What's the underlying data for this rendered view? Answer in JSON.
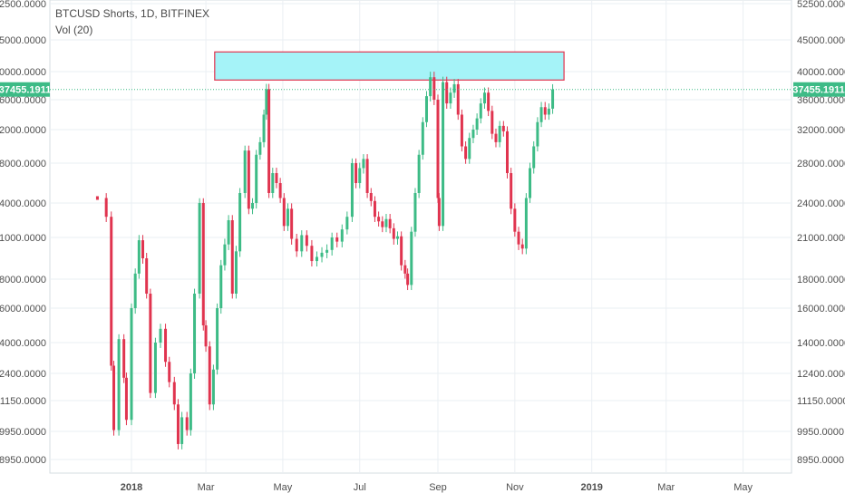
{
  "header": {
    "title": "BTCUSD Shorts, 1D, BITFINEX",
    "indicator": "Vol (20)"
  },
  "colors": {
    "up": "#3dbb86",
    "down": "#e0344f",
    "grid": "#eaeff3",
    "axis_text": "#4f4f4f",
    "price_line": "#3dbb86",
    "zone_fill": "#a5f3f8",
    "zone_stroke": "#e0344f"
  },
  "chart_data": {
    "type": "candlestick",
    "title": "BTCUSD Shorts, 1D, BITFINEX",
    "ylim": [
      8000,
      52500
    ],
    "y_ticks": [
      "52500.0000",
      "45000.0000",
      "40000.0000",
      "36000.0000",
      "32000.0000",
      "28000.0000",
      "24000.0000",
      "21000.0000",
      "18000.0000",
      "16000.0000",
      "14000.0000",
      "12400.0000",
      "11150.0000",
      "9950.0000",
      "8950.0000"
    ],
    "x_ticks": [
      "2018",
      "Mar",
      "May",
      "Jul",
      "Sep",
      "Nov",
      "2019",
      "Mar",
      "May"
    ],
    "current_price_label": "37455.1911",
    "current_price": 37455.1911,
    "resistance_zone": {
      "low": 38800,
      "high": 43100,
      "from": "2018-03-08",
      "to": "2018-12-10"
    },
    "series_closes": [
      {
        "date": "2017-12-05",
        "close": 24500
      },
      {
        "date": "2017-12-12",
        "close": 22800
      },
      {
        "date": "2017-12-16",
        "close": 12800
      },
      {
        "date": "2017-12-18",
        "close": 10000
      },
      {
        "date": "2017-12-22",
        "close": 14200
      },
      {
        "date": "2017-12-26",
        "close": 12200
      },
      {
        "date": "2017-12-28",
        "close": 10400
      },
      {
        "date": "2018-01-01",
        "close": 16000
      },
      {
        "date": "2018-01-04",
        "close": 18400
      },
      {
        "date": "2018-01-07",
        "close": 20800
      },
      {
        "date": "2018-01-10",
        "close": 19500
      },
      {
        "date": "2018-01-13",
        "close": 17000
      },
      {
        "date": "2018-01-16",
        "close": 11500
      },
      {
        "date": "2018-01-20",
        "close": 14000
      },
      {
        "date": "2018-01-24",
        "close": 14800
      },
      {
        "date": "2018-01-28",
        "close": 13000
      },
      {
        "date": "2018-01-31",
        "close": 12000
      },
      {
        "date": "2018-02-04",
        "close": 11000
      },
      {
        "date": "2018-02-07",
        "close": 9500
      },
      {
        "date": "2018-02-10",
        "close": 10500
      },
      {
        "date": "2018-02-14",
        "close": 10000
      },
      {
        "date": "2018-02-17",
        "close": 12400
      },
      {
        "date": "2018-02-20",
        "close": 17000
      },
      {
        "date": "2018-02-24",
        "close": 24000
      },
      {
        "date": "2018-02-27",
        "close": 15000
      },
      {
        "date": "2018-03-01",
        "close": 13800
      },
      {
        "date": "2018-03-04",
        "close": 11000
      },
      {
        "date": "2018-03-07",
        "close": 12600
      },
      {
        "date": "2018-03-10",
        "close": 16000
      },
      {
        "date": "2018-03-13",
        "close": 19000
      },
      {
        "date": "2018-03-16",
        "close": 20500
      },
      {
        "date": "2018-03-19",
        "close": 22500
      },
      {
        "date": "2018-03-22",
        "close": 17000
      },
      {
        "date": "2018-03-25",
        "close": 20000
      },
      {
        "date": "2018-03-28",
        "close": 25000
      },
      {
        "date": "2018-04-01",
        "close": 29500
      },
      {
        "date": "2018-04-04",
        "close": 23500
      },
      {
        "date": "2018-04-07",
        "close": 24000
      },
      {
        "date": "2018-04-10",
        "close": 29000
      },
      {
        "date": "2018-04-13",
        "close": 30500
      },
      {
        "date": "2018-04-16",
        "close": 34000
      },
      {
        "date": "2018-04-18",
        "close": 37500
      },
      {
        "date": "2018-04-20",
        "close": 25000
      },
      {
        "date": "2018-04-23",
        "close": 27000
      },
      {
        "date": "2018-04-26",
        "close": 26000
      },
      {
        "date": "2018-04-29",
        "close": 24500
      },
      {
        "date": "2018-05-02",
        "close": 22000
      },
      {
        "date": "2018-05-05",
        "close": 23500
      },
      {
        "date": "2018-05-08",
        "close": 20900
      },
      {
        "date": "2018-05-12",
        "close": 20000
      },
      {
        "date": "2018-05-16",
        "close": 21200
      },
      {
        "date": "2018-05-20",
        "close": 20400
      },
      {
        "date": "2018-05-24",
        "close": 19300
      },
      {
        "date": "2018-05-28",
        "close": 19600
      },
      {
        "date": "2018-06-01",
        "close": 19900
      },
      {
        "date": "2018-06-05",
        "close": 20100
      },
      {
        "date": "2018-06-09",
        "close": 21000
      },
      {
        "date": "2018-06-13",
        "close": 20700
      },
      {
        "date": "2018-06-17",
        "close": 21700
      },
      {
        "date": "2018-06-21",
        "close": 22800
      },
      {
        "date": "2018-06-25",
        "close": 28000
      },
      {
        "date": "2018-06-28",
        "close": 26000
      },
      {
        "date": "2018-07-01",
        "close": 27500
      },
      {
        "date": "2018-07-04",
        "close": 28500
      },
      {
        "date": "2018-07-07",
        "close": 25000
      },
      {
        "date": "2018-07-10",
        "close": 24200
      },
      {
        "date": "2018-07-13",
        "close": 22800
      },
      {
        "date": "2018-07-16",
        "close": 22400
      },
      {
        "date": "2018-07-19",
        "close": 21900
      },
      {
        "date": "2018-07-22",
        "close": 22600
      },
      {
        "date": "2018-07-25",
        "close": 21800
      },
      {
        "date": "2018-07-28",
        "close": 20900
      },
      {
        "date": "2018-07-31",
        "close": 21100
      },
      {
        "date": "2018-08-03",
        "close": 19000
      },
      {
        "date": "2018-08-06",
        "close": 18400
      },
      {
        "date": "2018-08-08",
        "close": 17600
      },
      {
        "date": "2018-08-11",
        "close": 21500
      },
      {
        "date": "2018-08-14",
        "close": 25000
      },
      {
        "date": "2018-08-17",
        "close": 29000
      },
      {
        "date": "2018-08-20",
        "close": 33000
      },
      {
        "date": "2018-08-23",
        "close": 36500
      },
      {
        "date": "2018-08-26",
        "close": 39200
      },
      {
        "date": "2018-08-29",
        "close": 36000
      },
      {
        "date": "2018-09-01",
        "close": 24500
      },
      {
        "date": "2018-09-02",
        "close": 22000
      },
      {
        "date": "2018-09-05",
        "close": 38500
      },
      {
        "date": "2018-09-08",
        "close": 35500
      },
      {
        "date": "2018-09-11",
        "close": 37000
      },
      {
        "date": "2018-09-14",
        "close": 38200
      },
      {
        "date": "2018-09-17",
        "close": 34000
      },
      {
        "date": "2018-09-20",
        "close": 30000
      },
      {
        "date": "2018-09-23",
        "close": 28500
      },
      {
        "date": "2018-09-26",
        "close": 31000
      },
      {
        "date": "2018-09-29",
        "close": 32000
      },
      {
        "date": "2018-10-02",
        "close": 33500
      },
      {
        "date": "2018-10-05",
        "close": 35500
      },
      {
        "date": "2018-10-08",
        "close": 37000
      },
      {
        "date": "2018-10-11",
        "close": 34500
      },
      {
        "date": "2018-10-14",
        "close": 31500
      },
      {
        "date": "2018-10-17",
        "close": 30500
      },
      {
        "date": "2018-10-20",
        "close": 32500
      },
      {
        "date": "2018-10-23",
        "close": 31800
      },
      {
        "date": "2018-10-26",
        "close": 27000
      },
      {
        "date": "2018-10-29",
        "close": 23500
      },
      {
        "date": "2018-11-01",
        "close": 21500
      },
      {
        "date": "2018-11-04",
        "close": 20500
      },
      {
        "date": "2018-11-07",
        "close": 20200
      },
      {
        "date": "2018-11-10",
        "close": 24500
      },
      {
        "date": "2018-11-13",
        "close": 27500
      },
      {
        "date": "2018-11-16",
        "close": 30000
      },
      {
        "date": "2018-11-19",
        "close": 33000
      },
      {
        "date": "2018-11-22",
        "close": 35000
      },
      {
        "date": "2018-11-25",
        "close": 34000
      },
      {
        "date": "2018-11-28",
        "close": 34800
      },
      {
        "date": "2018-12-01",
        "close": 37455
      }
    ]
  }
}
